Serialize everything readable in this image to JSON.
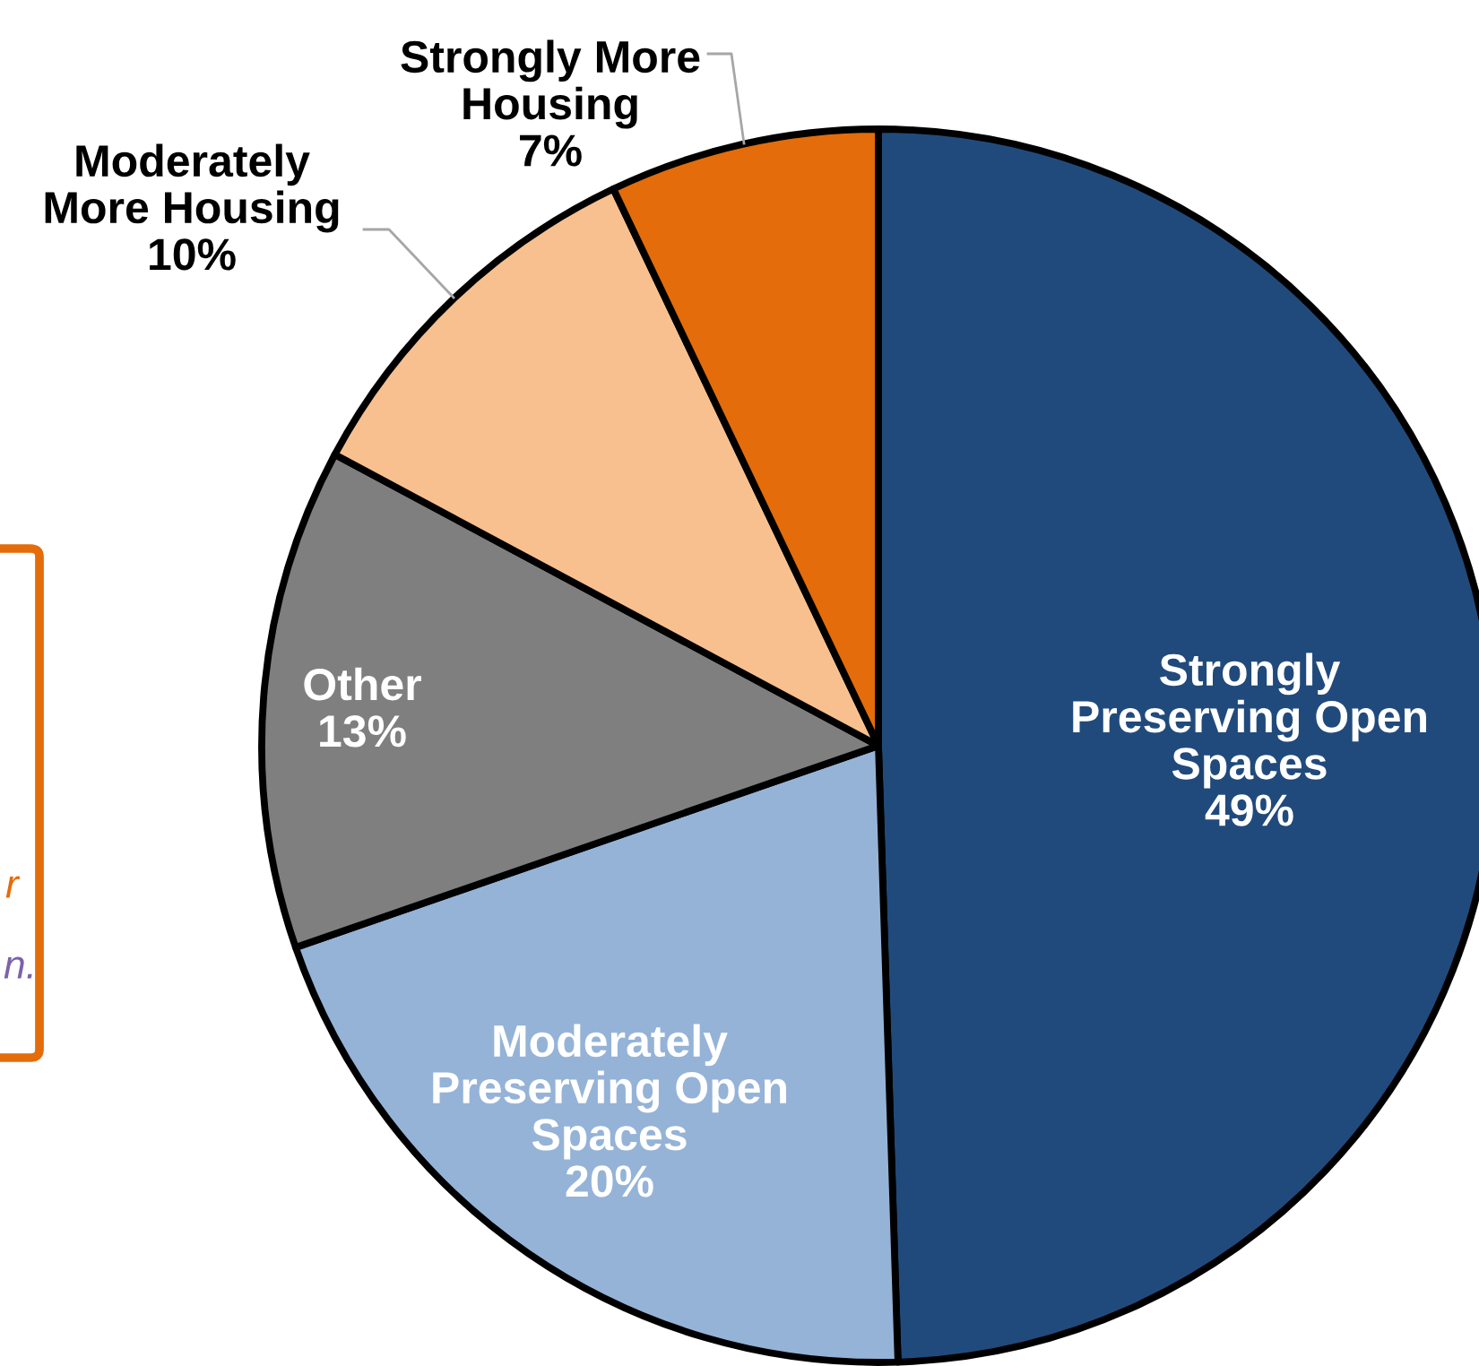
{
  "chart_data": {
    "type": "pie",
    "categories": [
      "Strongly Preserving Open Spaces",
      "Moderately Preserving Open Spaces",
      "Other",
      "Moderately More Housing",
      "Strongly More Housing"
    ],
    "values": [
      49,
      20,
      13,
      10,
      7
    ],
    "value_labels": [
      "49%",
      "20%",
      "13%",
      "10%",
      "7%"
    ],
    "colors": [
      "#214a7c",
      "#95b3d7",
      "#7f7f7f",
      "#f9c08f",
      "#e46c0a"
    ],
    "annotations": [
      "r",
      "n."
    ]
  }
}
